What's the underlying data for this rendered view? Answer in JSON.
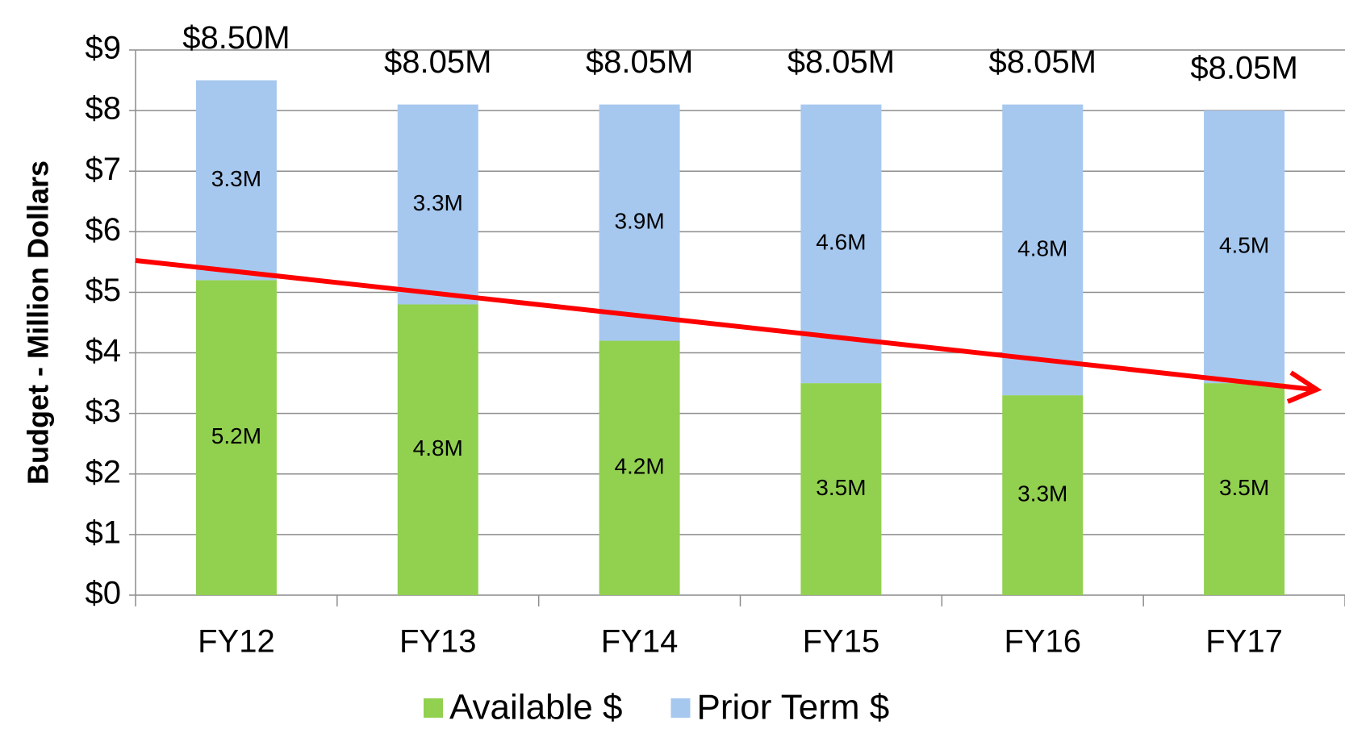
{
  "chart_data": {
    "type": "bar",
    "stacked": true,
    "y_label": "Budget - Million Dollars",
    "categories": [
      "FY12",
      "FY13",
      "FY14",
      "FY15",
      "FY16",
      "FY17"
    ],
    "series": [
      {
        "name": "Available $",
        "color": "#92d050",
        "values": [
          5.2,
          4.8,
          4.2,
          3.5,
          3.3,
          3.5
        ],
        "value_labels": [
          "5.2M",
          "4.8M",
          "4.2M",
          "3.5M",
          "3.3M",
          "3.5M"
        ]
      },
      {
        "name": "Prior Term $",
        "color": "#a6c8ef",
        "values": [
          3.3,
          3.3,
          3.9,
          4.6,
          4.8,
          4.5
        ],
        "value_labels": [
          "3.3M",
          "3.3M",
          "3.9M",
          "4.6M",
          "4.8M",
          "4.5M"
        ]
      }
    ],
    "totals": [
      {
        "value": 8.5,
        "label": "$8.50M"
      },
      {
        "value": 8.05,
        "label": "$8.05M"
      },
      {
        "value": 8.05,
        "label": "$8.05M"
      },
      {
        "value": 8.05,
        "label": "$8.05M"
      },
      {
        "value": 8.05,
        "label": "$8.05M"
      },
      {
        "value": 8.05,
        "label": "$8.05M"
      }
    ],
    "ylim": [
      0,
      9
    ],
    "yticks": [
      {
        "value": 0,
        "label": "$0"
      },
      {
        "value": 1,
        "label": "$1"
      },
      {
        "value": 2,
        "label": "$2"
      },
      {
        "value": 3,
        "label": "$3"
      },
      {
        "value": 4,
        "label": "$4"
      },
      {
        "value": 5,
        "label": "$5"
      },
      {
        "value": 6,
        "label": "$6"
      },
      {
        "value": 7,
        "label": "$7"
      },
      {
        "value": 8,
        "label": "$8"
      },
      {
        "value": 9,
        "label": "$9"
      }
    ],
    "grid": true,
    "legend": "bottom"
  }
}
